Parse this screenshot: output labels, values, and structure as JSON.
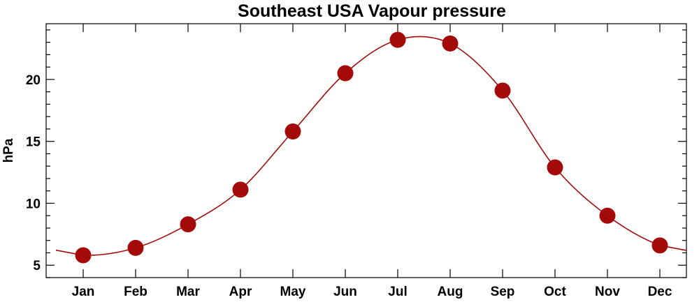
{
  "chart_data": {
    "type": "line",
    "title": "Southeast USA Vapour pressure",
    "xlabel": "",
    "ylabel": "hPa",
    "categories": [
      "Jan",
      "Feb",
      "Mar",
      "Apr",
      "May",
      "Jun",
      "Jul",
      "Aug",
      "Sep",
      "Oct",
      "Nov",
      "Dec"
    ],
    "values": [
      5.8,
      6.4,
      8.3,
      11.1,
      15.8,
      20.5,
      23.2,
      22.9,
      19.1,
      12.9,
      9.0,
      6.6
    ],
    "ylim": [
      4,
      24.5
    ],
    "yticks": [
      5,
      10,
      15,
      20
    ],
    "grid": false,
    "legend": "none",
    "line_color": "#a50a0a",
    "marker_color": "#a50a0a"
  }
}
